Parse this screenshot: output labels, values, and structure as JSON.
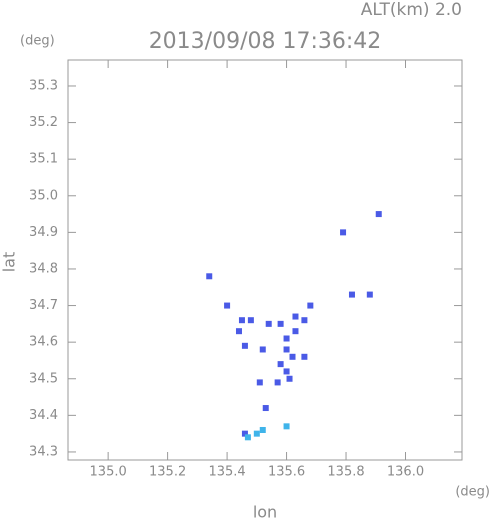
{
  "chart_data": {
    "type": "scatter",
    "title": "2013/09/08 17:36:42",
    "subtitle": "ALT(km) 2.0",
    "x_label": "lon",
    "y_label": "lat",
    "x_unit": "(deg)",
    "y_unit": "(deg)",
    "xlim": [
      134.865,
      136.19
    ],
    "ylim": [
      34.278,
      35.371
    ],
    "xticks": [
      {
        "value": 135.0,
        "label": "135.0"
      },
      135.2,
      135.4,
      135.6,
      135.8,
      {
        "value": 136.0,
        "label": "136.0"
      }
    ],
    "yticks": [
      34.3,
      34.4,
      34.5,
      34.6,
      34.7,
      34.8,
      34.9,
      {
        "value": 35.0,
        "label": "35.0"
      },
      35.1,
      35.2,
      35.3
    ],
    "series": [
      {
        "color": "#4a5ae6",
        "x": [
          135.91,
          135.79,
          135.82,
          135.88,
          135.68,
          135.4,
          135.45,
          135.48,
          135.44,
          135.54,
          135.58,
          135.63,
          135.66,
          135.63,
          135.52,
          135.6,
          135.6,
          135.62,
          135.66,
          135.58,
          135.6,
          135.61,
          135.51,
          135.57,
          135.53,
          135.46,
          135.34,
          135.46
        ],
        "y": [
          34.95,
          34.9,
          34.73,
          34.73,
          34.7,
          34.7,
          34.66,
          34.66,
          34.63,
          34.65,
          34.65,
          34.67,
          34.66,
          34.63,
          34.58,
          34.61,
          34.58,
          34.56,
          34.56,
          34.54,
          34.52,
          34.5,
          34.49,
          34.49,
          34.42,
          34.35,
          34.78,
          34.59
        ]
      },
      {
        "color": "#3fb4ea",
        "x": [
          135.47,
          135.5,
          135.52,
          135.6
        ],
        "y": [
          34.34,
          34.35,
          34.36,
          34.37
        ]
      }
    ]
  }
}
